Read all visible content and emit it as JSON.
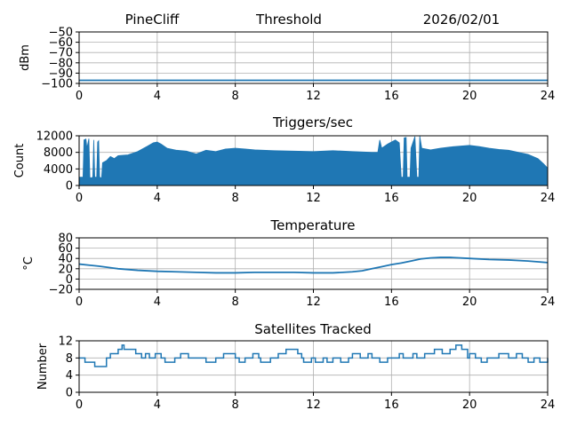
{
  "header": {
    "station": "PineCliff",
    "title": "Threshold",
    "date": "2026/02/01"
  },
  "colors": {
    "series": "#1f77b4",
    "grid": "#b0b0b0",
    "axis": "#000000"
  },
  "chart_data": [
    {
      "id": "threshold",
      "type": "line",
      "title": "Threshold",
      "ylabel": "dBm",
      "xlim": [
        0,
        24
      ],
      "xticks": [
        0,
        4,
        8,
        12,
        16,
        20,
        24
      ],
      "ylim": [
        -100,
        -50
      ],
      "yticks": [
        -100,
        -90,
        -80,
        -70,
        -60,
        -50
      ],
      "series": [
        {
          "name": "threshold",
          "style": "line",
          "points": [
            [
              0,
              -97
            ],
            [
              24,
              -97
            ]
          ]
        }
      ]
    },
    {
      "id": "triggers",
      "type": "area",
      "title": "Triggers/sec",
      "ylabel": "Count",
      "xlim": [
        0,
        24
      ],
      "xticks": [
        0,
        4,
        8,
        12,
        16,
        20,
        24
      ],
      "ylim": [
        0,
        12000
      ],
      "yticks": [
        0,
        4000,
        8000,
        12000
      ],
      "series": [
        {
          "name": "triggers_upper",
          "style": "area",
          "points": [
            [
              0,
              2000
            ],
            [
              0.2,
              2000
            ],
            [
              0.25,
              11000
            ],
            [
              0.35,
              11200
            ],
            [
              0.4,
              9000
            ],
            [
              0.5,
              11300
            ],
            [
              0.55,
              2000
            ],
            [
              0.6,
              1800
            ],
            [
              0.7,
              2000
            ],
            [
              0.75,
              11000
            ],
            [
              0.8,
              2000
            ],
            [
              0.9,
              2000
            ],
            [
              0.95,
              10500
            ],
            [
              1.0,
              10800
            ],
            [
              1.05,
              2000
            ],
            [
              1.15,
              1800
            ],
            [
              1.2,
              5500
            ],
            [
              1.4,
              6000
            ],
            [
              1.6,
              7000
            ],
            [
              1.8,
              6500
            ],
            [
              2,
              7200
            ],
            [
              2.5,
              7400
            ],
            [
              3,
              8200
            ],
            [
              3.5,
              9500
            ],
            [
              3.8,
              10300
            ],
            [
              4,
              10500
            ],
            [
              4.2,
              10000
            ],
            [
              4.5,
              9000
            ],
            [
              5,
              8500
            ],
            [
              5.5,
              8300
            ],
            [
              6,
              7600
            ],
            [
              6.5,
              8500
            ],
            [
              7,
              8200
            ],
            [
              7.5,
              8800
            ],
            [
              8,
              9000
            ],
            [
              8.5,
              8800
            ],
            [
              9,
              8600
            ],
            [
              10,
              8400
            ],
            [
              11,
              8300
            ],
            [
              12,
              8200
            ],
            [
              13,
              8400
            ],
            [
              14,
              8200
            ],
            [
              15,
              8000
            ],
            [
              15.3,
              8000
            ],
            [
              15.4,
              11000
            ],
            [
              15.5,
              9000
            ],
            [
              15.8,
              10000
            ],
            [
              16,
              10500
            ],
            [
              16.2,
              11000
            ],
            [
              16.4,
              10300
            ],
            [
              16.5,
              2000
            ],
            [
              16.6,
              2000
            ],
            [
              16.65,
              11500
            ],
            [
              16.75,
              11600
            ],
            [
              16.8,
              2000
            ],
            [
              16.95,
              2000
            ],
            [
              17,
              9000
            ],
            [
              17.2,
              11800
            ],
            [
              17.3,
              2000
            ],
            [
              17.4,
              2000
            ],
            [
              17.45,
              11900
            ],
            [
              17.55,
              9000
            ],
            [
              18,
              8600
            ],
            [
              18.5,
              9000
            ],
            [
              19,
              9300
            ],
            [
              19.5,
              9500
            ],
            [
              20,
              9700
            ],
            [
              20.5,
              9400
            ],
            [
              21,
              9000
            ],
            [
              21.5,
              8700
            ],
            [
              22,
              8500
            ],
            [
              22.5,
              8000
            ],
            [
              23,
              7500
            ],
            [
              23.5,
              6500
            ],
            [
              23.8,
              5200
            ],
            [
              24,
              4200
            ]
          ]
        }
      ]
    },
    {
      "id": "temperature",
      "type": "line",
      "title": "Temperature",
      "ylabel": "°C",
      "xlim": [
        0,
        24
      ],
      "xticks": [
        0,
        4,
        8,
        12,
        16,
        20,
        24
      ],
      "ylim": [
        -20,
        80
      ],
      "yticks": [
        -20,
        0,
        20,
        40,
        60,
        80
      ],
      "series": [
        {
          "name": "temperature",
          "style": "line",
          "points": [
            [
              0,
              29
            ],
            [
              0.5,
              27
            ],
            [
              1,
              25
            ],
            [
              2,
              20
            ],
            [
              3,
              17
            ],
            [
              4,
              15
            ],
            [
              5,
              14
            ],
            [
              6,
              13
            ],
            [
              7,
              12
            ],
            [
              8,
              12
            ],
            [
              9,
              13
            ],
            [
              10,
              13
            ],
            [
              11,
              13
            ],
            [
              12,
              12
            ],
            [
              13,
              12
            ],
            [
              14,
              14
            ],
            [
              14.5,
              16
            ],
            [
              15,
              20
            ],
            [
              15.5,
              24
            ],
            [
              16,
              28
            ],
            [
              16.5,
              31
            ],
            [
              17,
              35
            ],
            [
              17.5,
              39
            ],
            [
              18,
              41
            ],
            [
              18.5,
              42
            ],
            [
              19,
              42
            ],
            [
              20,
              40
            ],
            [
              21,
              38
            ],
            [
              22,
              37
            ],
            [
              23,
              35
            ],
            [
              24,
              32
            ]
          ]
        }
      ]
    },
    {
      "id": "satellites",
      "type": "line",
      "title": "Satellites Tracked",
      "ylabel": "Number",
      "xlim": [
        0,
        24
      ],
      "xticks": [
        0,
        4,
        8,
        12,
        16,
        20,
        24
      ],
      "ylim": [
        0,
        12
      ],
      "yticks": [
        0,
        4,
        8,
        12
      ],
      "series": [
        {
          "name": "satellites",
          "style": "step",
          "points": [
            [
              0,
              8
            ],
            [
              0.3,
              7
            ],
            [
              0.8,
              6
            ],
            [
              1.4,
              8
            ],
            [
              1.6,
              9
            ],
            [
              2,
              10
            ],
            [
              2.2,
              11
            ],
            [
              2.3,
              10
            ],
            [
              2.9,
              9
            ],
            [
              3.2,
              8
            ],
            [
              3.4,
              9
            ],
            [
              3.6,
              8
            ],
            [
              3.9,
              9
            ],
            [
              4.2,
              8
            ],
            [
              4.4,
              7
            ],
            [
              4.9,
              8
            ],
            [
              5.2,
              9
            ],
            [
              5.6,
              8
            ],
            [
              6.5,
              7
            ],
            [
              7,
              8
            ],
            [
              7.4,
              9
            ],
            [
              8,
              8
            ],
            [
              8.2,
              7
            ],
            [
              8.5,
              8
            ],
            [
              8.9,
              9
            ],
            [
              9.2,
              8
            ],
            [
              9.3,
              7
            ],
            [
              9.8,
              8
            ],
            [
              10.2,
              9
            ],
            [
              10.6,
              10
            ],
            [
              11.2,
              9
            ],
            [
              11.4,
              8
            ],
            [
              11.5,
              7
            ],
            [
              11.9,
              8
            ],
            [
              12.1,
              7
            ],
            [
              12.5,
              8
            ],
            [
              12.7,
              7
            ],
            [
              13,
              8
            ],
            [
              13.4,
              7
            ],
            [
              13.8,
              8
            ],
            [
              14,
              9
            ],
            [
              14.4,
              8
            ],
            [
              14.8,
              9
            ],
            [
              15,
              8
            ],
            [
              15.4,
              7
            ],
            [
              15.8,
              8
            ],
            [
              16.4,
              9
            ],
            [
              16.6,
              8
            ],
            [
              17.1,
              9
            ],
            [
              17.3,
              8
            ],
            [
              17.7,
              9
            ],
            [
              18.2,
              10
            ],
            [
              18.6,
              9
            ],
            [
              19,
              10
            ],
            [
              19.3,
              11
            ],
            [
              19.6,
              10
            ],
            [
              19.9,
              8
            ],
            [
              20,
              9
            ],
            [
              20.3,
              8
            ],
            [
              20.6,
              7
            ],
            [
              20.9,
              8
            ],
            [
              21.5,
              9
            ],
            [
              22,
              8
            ],
            [
              22.4,
              9
            ],
            [
              22.7,
              8
            ],
            [
              23,
              7
            ],
            [
              23.3,
              8
            ],
            [
              23.6,
              7
            ],
            [
              24,
              8
            ]
          ]
        }
      ]
    }
  ]
}
